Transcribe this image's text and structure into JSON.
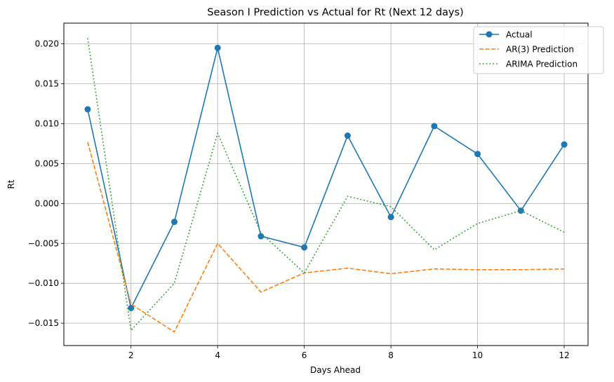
{
  "chart_data": {
    "type": "line",
    "title": "Season I Prediction vs Actual for Rt (Next 12 days)",
    "xlabel": "Days Ahead",
    "ylabel": "Rt",
    "x": [
      1,
      2,
      3,
      4,
      5,
      6,
      7,
      8,
      9,
      10,
      11,
      12
    ],
    "xlim": [
      0.45,
      12.55
    ],
    "ylim": [
      -0.0178,
      0.0226
    ],
    "x_ticks": [
      2,
      4,
      6,
      8,
      10,
      12
    ],
    "x_tick_labels": [
      "2",
      "4",
      "6",
      "8",
      "10",
      "12"
    ],
    "y_ticks": [
      -0.015,
      -0.01,
      -0.005,
      0.0,
      0.005,
      0.01,
      0.015,
      0.02
    ],
    "y_tick_labels": [
      "−0.015",
      "−0.010",
      "−0.005",
      "0.000",
      "0.005",
      "0.010",
      "0.015",
      "0.020"
    ],
    "grid": true,
    "legend_position": "top-right",
    "series": [
      {
        "name": "Actual",
        "color": "#1f77b4",
        "line_style": "solid",
        "marker": "circle",
        "values": [
          0.0118,
          -0.0131,
          -0.0023,
          0.0195,
          -0.0041,
          -0.0055,
          0.0085,
          -0.0017,
          0.0097,
          0.0062,
          -0.0009,
          0.0074
        ]
      },
      {
        "name": "AR(3) Prediction",
        "color": "#ff7f0e",
        "line_style": "dashed",
        "marker": "none",
        "values": [
          0.0077,
          -0.0126,
          -0.0161,
          -0.005,
          -0.0111,
          -0.0087,
          -0.0081,
          -0.0088,
          -0.0082,
          -0.0083,
          -0.0083,
          -0.0082
        ]
      },
      {
        "name": "ARIMA Prediction",
        "color": "#2ca02c",
        "line_style": "dotted",
        "marker": "none",
        "values": [
          0.0207,
          -0.0159,
          -0.01,
          0.0088,
          -0.0037,
          -0.0087,
          0.0009,
          -0.0004,
          -0.0058,
          -0.0025,
          -0.0009,
          -0.0036
        ]
      }
    ]
  }
}
